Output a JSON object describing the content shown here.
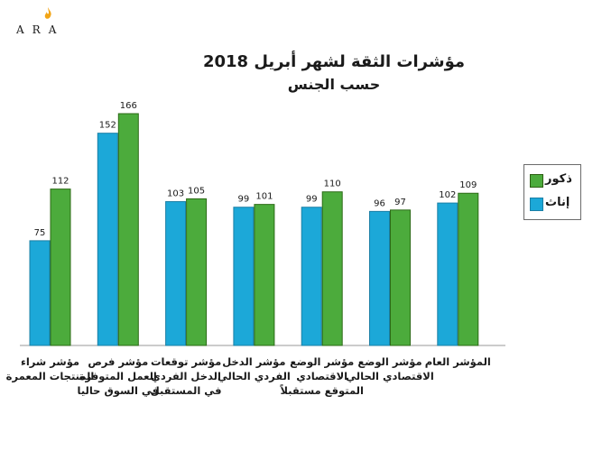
{
  "logo": {
    "text": "ARA",
    "icon": "flame-icon"
  },
  "colors": {
    "males": "#4cab3c",
    "males_border": "#2c6b16",
    "females": "#1ca8d8",
    "females_border": "#1a7fa6"
  },
  "chart_data": {
    "type": "bar",
    "title": "مؤشرات الثقة لشهر أبريل 2018",
    "subtitle": "حسب الجنس",
    "categories": [
      "مؤشر شراء المنتجات المعمرة",
      "مؤشر فرص العمل المتوفرة في السوق حاليا",
      "مؤشر توقعات الدخل الفردي في المستقبل",
      "مؤشر الدخل الفردي الحالي",
      "مؤشر الوضع الاقتصادي المتوقع مستقبلاً",
      "مؤشر الوضع الاقتصادي الحالي",
      "المؤشر العام"
    ],
    "series": [
      {
        "name": "إناث",
        "values": [
          75,
          152,
          103,
          99,
          99,
          96,
          102
        ]
      },
      {
        "name": "ذكور",
        "values": [
          112,
          166,
          105,
          101,
          110,
          97,
          109
        ]
      }
    ],
    "ylim": [
      0,
      180
    ],
    "grid": false,
    "legend_position": "right"
  }
}
